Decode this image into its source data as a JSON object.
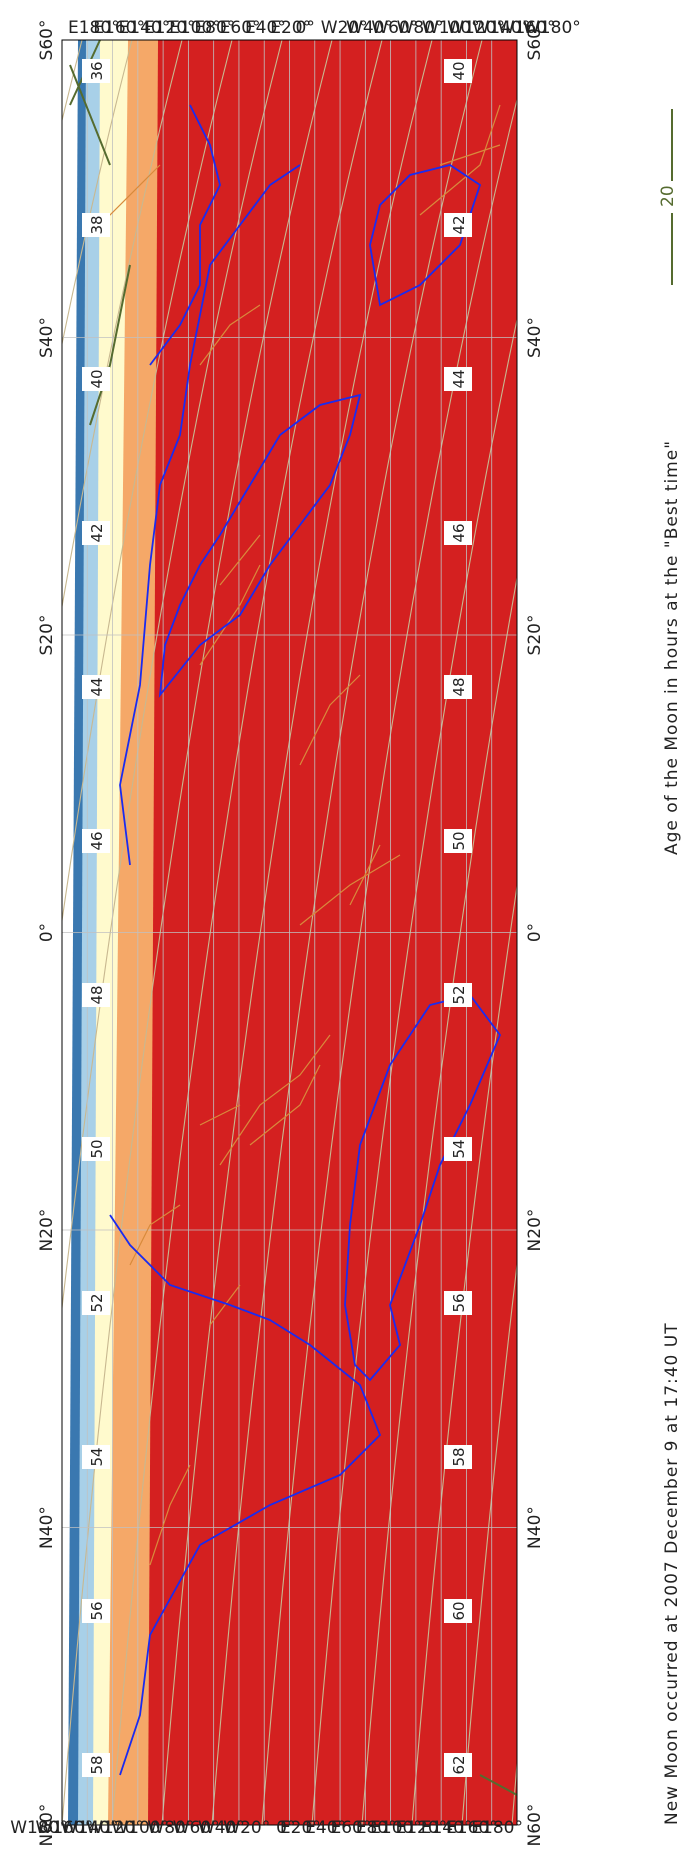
{
  "map": {
    "top_labels": [
      "N60°",
      "N40°",
      "N20°",
      "0°",
      "S20°",
      "S40°",
      "S60°"
    ],
    "bottom_labels": [
      "N60°",
      "N40°",
      "N20°",
      "0°",
      "S20°",
      "S40°",
      "S60°"
    ],
    "left_labels": [
      "W180°",
      "W160°",
      "W140°",
      "W120°",
      "W100°",
      "W80°",
      "W60°",
      "W40°",
      "W20°",
      "0°",
      "E20°",
      "E40°",
      "E60°",
      "E80°",
      "E100°",
      "E120°",
      "E140°",
      "E160°",
      "E180°"
    ],
    "right_labels": [
      "E180°",
      "E160°",
      "E140°",
      "E120°",
      "E100°",
      "E80°",
      "E60°",
      "E40°",
      "E20°",
      "0°",
      "W20°",
      "W40°",
      "W60°",
      "W80°",
      "W100°",
      "W120°",
      "W140°",
      "W160°",
      "W180°"
    ],
    "upper_contour_labels": [
      "58",
      "56",
      "54",
      "52",
      "50",
      "48",
      "46",
      "44",
      "42",
      "40",
      "38",
      "36"
    ],
    "lower_contour_labels": [
      "62",
      "60",
      "58",
      "56",
      "54",
      "52",
      "50",
      "48",
      "46",
      "44",
      "42",
      "40"
    ],
    "colors": {
      "visible_zone": "#d42020",
      "zone_orange": "#f5a868",
      "zone_cream": "#fffacd",
      "zone_light_blue": "#a8d0e8",
      "zone_blue": "#3a78b0",
      "graticule": "#c0c0c0",
      "coastline": "#1a2bf0",
      "borders": "#d88a3c",
      "contours": "#c8b890",
      "moon_line": "#556b2f"
    }
  },
  "captions": {
    "left": "New Moon occurred at 2007 December 9 at 17:40 UT",
    "right": "Age of the Moon in hours at the \"Best time\"",
    "legend_value": "20"
  }
}
